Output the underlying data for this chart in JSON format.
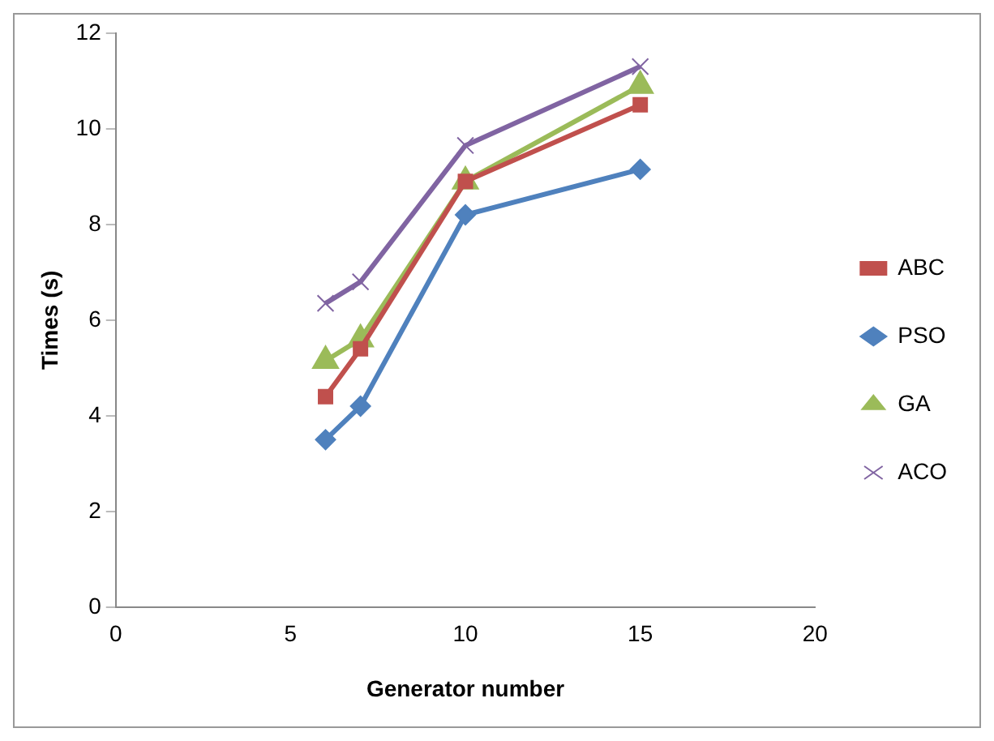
{
  "chart_data": {
    "type": "line",
    "xlabel": "Generator number",
    "ylabel": "Times (s)",
    "x": [
      6,
      7,
      10,
      15
    ],
    "series": [
      {
        "name": "ABC",
        "color": "#c0504d",
        "values": [
          4.4,
          5.4,
          8.9,
          10.5
        ],
        "marker": "square"
      },
      {
        "name": "PSO",
        "color": "#4f81bd",
        "values": [
          3.5,
          4.2,
          8.2,
          9.15
        ],
        "marker": "diamond"
      },
      {
        "name": "GA",
        "color": "#9bbb59",
        "values": [
          5.15,
          5.6,
          8.9,
          10.9
        ],
        "marker": "triangle"
      },
      {
        "name": "ACO",
        "color": "#8064a2",
        "values": [
          6.35,
          6.8,
          9.65,
          11.3
        ],
        "marker": "cross"
      }
    ],
    "xlim": [
      0,
      20
    ],
    "xticks": [
      0,
      5,
      10,
      15,
      20
    ],
    "ylim": [
      0,
      12
    ],
    "yticks": [
      0,
      2,
      4,
      6,
      8,
      10,
      12
    ],
    "grid": false,
    "legend": "right",
    "line_style": "solid"
  }
}
